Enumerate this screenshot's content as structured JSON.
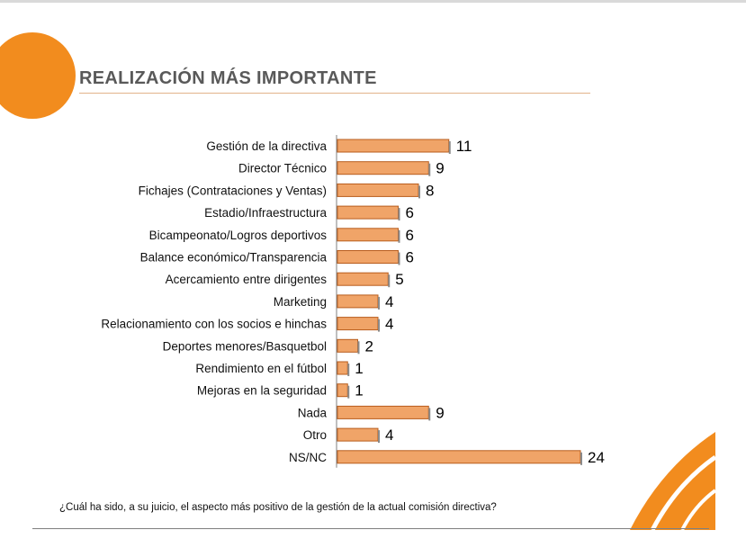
{
  "page": {
    "title": "REALIZACIÓN MÁS IMPORTANTE",
    "question": "¿Cuál ha sido, a su juicio, el aspecto más positivo de la gestión de la actual comisión directiva?"
  },
  "colors": {
    "bar_fill": "#f0a468",
    "bar_stroke": "#b85c1c",
    "accent": "#f28c1e",
    "title_text": "#595959"
  },
  "chart_data": {
    "type": "bar",
    "orientation": "horizontal",
    "title": "REALIZACIÓN MÁS IMPORTANTE",
    "xlabel": "",
    "ylabel": "",
    "xlim": [
      0,
      24
    ],
    "grid": false,
    "categories": [
      "Gestión de la directiva",
      "Director Técnico",
      "Fichajes (Contrataciones y Ventas)",
      "Estadio/Infraestructura",
      "Bicampeonato/Logros deportivos",
      "Balance económico/Transparencia",
      "Acercamiento entre dirigentes",
      "Marketing",
      "Relacionamiento con los socios e hinchas",
      "Deportes menores/Basquetbol",
      "Rendimiento en el fútbol",
      "Mejoras en la seguridad",
      "Nada",
      "Otro",
      "NS/NC"
    ],
    "values": [
      11,
      9,
      8,
      6,
      6,
      6,
      5,
      4,
      4,
      2,
      1,
      1,
      9,
      4,
      24
    ]
  }
}
